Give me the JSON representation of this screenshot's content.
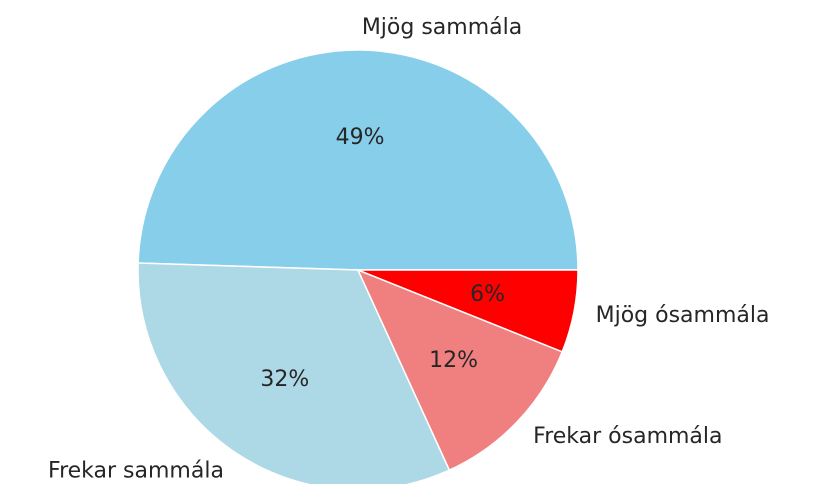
{
  "chart_data": {
    "type": "pie",
    "categories": [
      "Mjög sammála",
      "Frekar sammála",
      "Frekar ósammála",
      "Mjög ósammála"
    ],
    "values": [
      49,
      32,
      12,
      6
    ],
    "value_labels": [
      "49%",
      "32%",
      "12%",
      "6%"
    ],
    "colors": [
      "#87ceeb",
      "#add8e6",
      "#f08080",
      "#ff0000"
    ],
    "start_angle": 0
  }
}
